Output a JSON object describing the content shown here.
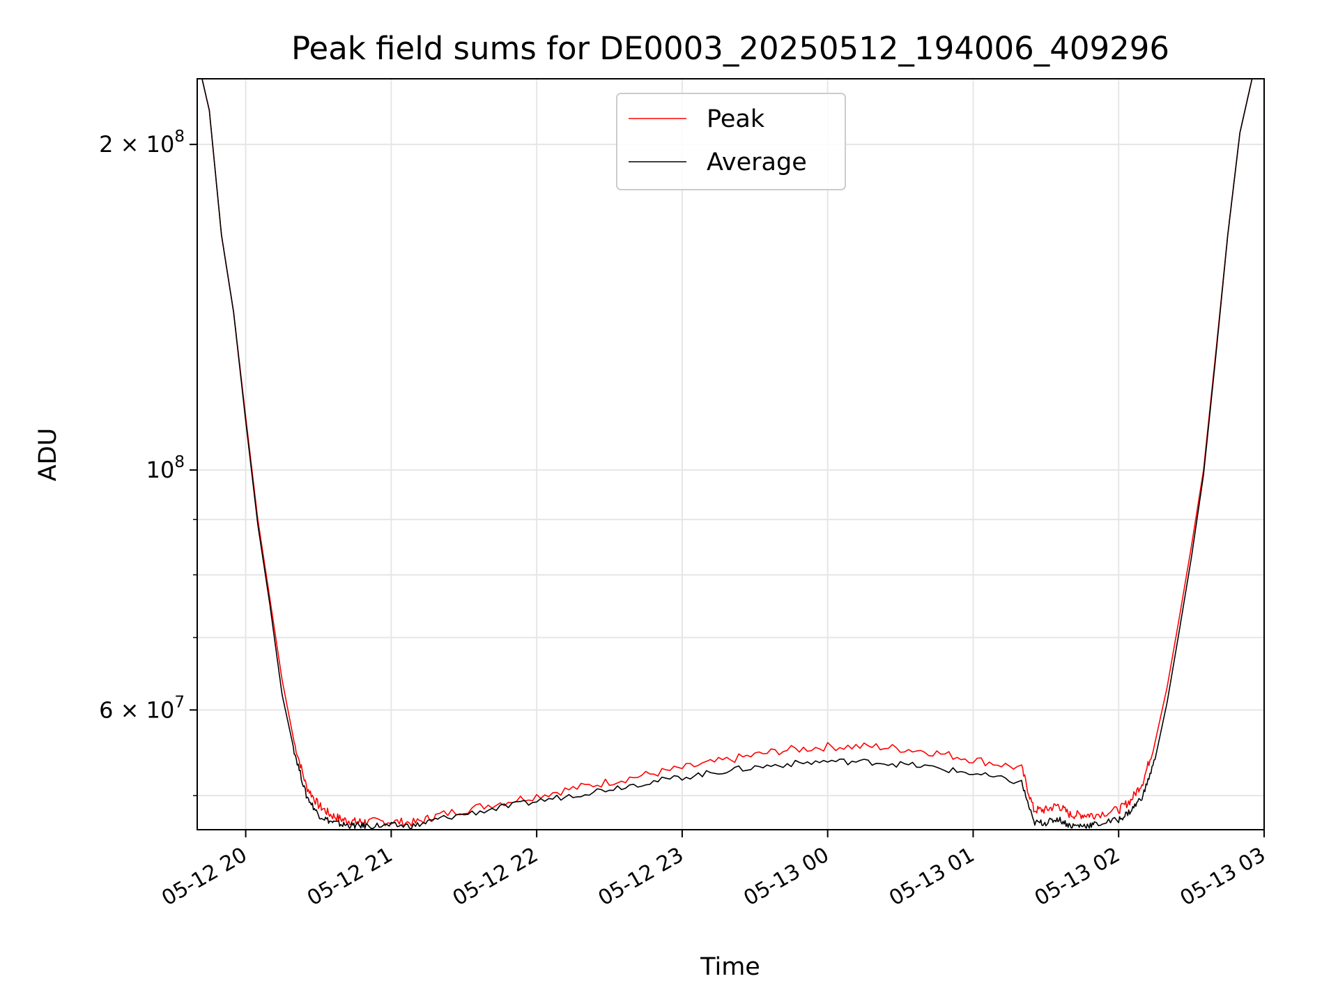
{
  "chart_data": {
    "type": "line",
    "title": "Peak field sums for DE0003_20250512_194006_409296",
    "xlabel": "Time",
    "ylabel": "ADU",
    "yscale": "log",
    "xlim": [
      "2025-05-12 19:40",
      "2025-05-13 03:00"
    ],
    "ylim": [
      46500000,
      230000000
    ],
    "grid": true,
    "legend_position": "upper center",
    "x_ticks": [
      "05-12 20",
      "05-12 21",
      "05-12 22",
      "05-12 23",
      "05-13 00",
      "05-13 01",
      "05-13 02",
      "05-13 03"
    ],
    "y_ticks": [
      {
        "label_base": "2 × 10",
        "label_exp": "8",
        "value": 200000000
      },
      {
        "label_base": "10",
        "label_exp": "8",
        "value": 100000000
      },
      {
        "label_base": "6 × 10",
        "label_exp": "7",
        "value": 60000000
      }
    ],
    "y_minor_ticks": [
      50000000,
      70000000,
      80000000,
      90000000
    ],
    "series": [
      {
        "name": "Peak",
        "color": "#ff0000",
        "x": [
          "2025-05-12 19:40",
          "2025-05-12 19:42",
          "2025-05-12 19:45",
          "2025-05-12 19:50",
          "2025-05-12 19:55",
          "2025-05-12 20:00",
          "2025-05-12 20:05",
          "2025-05-12 20:10",
          "2025-05-12 20:15",
          "2025-05-12 20:20",
          "2025-05-12 20:25",
          "2025-05-12 20:30",
          "2025-05-12 20:35",
          "2025-05-12 20:40",
          "2025-05-12 20:45",
          "2025-05-12 20:50",
          "2025-05-12 21:00",
          "2025-05-12 21:10",
          "2025-05-12 21:20",
          "2025-05-12 21:40",
          "2025-05-12 22:00",
          "2025-05-12 22:20",
          "2025-05-12 22:40",
          "2025-05-12 23:00",
          "2025-05-12 23:20",
          "2025-05-12 23:40",
          "2025-05-13 00:00",
          "2025-05-13 00:20",
          "2025-05-13 00:40",
          "2025-05-13 01:00",
          "2025-05-13 01:20",
          "2025-05-13 01:25",
          "2025-05-13 01:30",
          "2025-05-13 01:35",
          "2025-05-13 01:40",
          "2025-05-13 01:45",
          "2025-05-13 01:50",
          "2025-05-13 02:00",
          "2025-05-13 02:05",
          "2025-05-13 02:10",
          "2025-05-13 02:15",
          "2025-05-13 02:20",
          "2025-05-13 02:25",
          "2025-05-13 02:30",
          "2025-05-13 02:35",
          "2025-05-13 02:40",
          "2025-05-13 02:45",
          "2025-05-13 02:50",
          "2025-05-13 02:55",
          "2025-05-13 02:58"
        ],
        "y": [
          230000000,
          230000000,
          215000000,
          165000000,
          140000000,
          112000000,
          90000000,
          76000000,
          64000000,
          56000000,
          51000000,
          49000000,
          48000000,
          47500000,
          47300000,
          47300000,
          47300000,
          47200000,
          48000000,
          49000000,
          50000000,
          51000000,
          52000000,
          53000000,
          54000000,
          55000000,
          55500000,
          55500000,
          55000000,
          54000000,
          53000000,
          48500000,
          48500000,
          49000000,
          48000000,
          48000000,
          48000000,
          48500000,
          49500000,
          51500000,
          56000000,
          63000000,
          73000000,
          85000000,
          100000000,
          128000000,
          165000000,
          205000000,
          230000000,
          230000000
        ]
      },
      {
        "name": "Average",
        "color": "#000000",
        "x": [
          "2025-05-12 19:40",
          "2025-05-12 19:42",
          "2025-05-12 19:45",
          "2025-05-12 19:50",
          "2025-05-12 19:55",
          "2025-05-12 20:00",
          "2025-05-12 20:05",
          "2025-05-12 20:10",
          "2025-05-12 20:15",
          "2025-05-12 20:20",
          "2025-05-12 20:25",
          "2025-05-12 20:30",
          "2025-05-12 20:35",
          "2025-05-12 20:40",
          "2025-05-12 20:45",
          "2025-05-12 20:50",
          "2025-05-12 21:00",
          "2025-05-12 21:10",
          "2025-05-12 21:20",
          "2025-05-12 21:40",
          "2025-05-12 22:00",
          "2025-05-12 22:20",
          "2025-05-12 22:40",
          "2025-05-12 23:00",
          "2025-05-12 23:20",
          "2025-05-12 23:40",
          "2025-05-13 00:00",
          "2025-05-13 00:20",
          "2025-05-13 00:40",
          "2025-05-13 01:00",
          "2025-05-13 01:20",
          "2025-05-13 01:25",
          "2025-05-13 01:30",
          "2025-05-13 01:35",
          "2025-05-13 01:40",
          "2025-05-13 01:45",
          "2025-05-13 01:50",
          "2025-05-13 02:00",
          "2025-05-13 02:05",
          "2025-05-13 02:10",
          "2025-05-13 02:15",
          "2025-05-13 02:20",
          "2025-05-13 02:25",
          "2025-05-13 02:30",
          "2025-05-13 02:35",
          "2025-05-13 02:40",
          "2025-05-13 02:45",
          "2025-05-13 02:50",
          "2025-05-13 02:55",
          "2025-05-13 02:58"
        ],
        "y": [
          230000000,
          230000000,
          215000000,
          165000000,
          140000000,
          111000000,
          89000000,
          75000000,
          62000000,
          55000000,
          50000000,
          48000000,
          47300000,
          47000000,
          46900000,
          46900000,
          46900000,
          46900000,
          47600000,
          48500000,
          49400000,
          50300000,
          51200000,
          52000000,
          52800000,
          53400000,
          53800000,
          53700000,
          53200000,
          52400000,
          51400000,
          47200000,
          47200000,
          47600000,
          46900000,
          46900000,
          47000000,
          47500000,
          48400000,
          50000000,
          54000000,
          61000000,
          71000000,
          83000000,
          99000000,
          127000000,
          165000000,
          205000000,
          230000000,
          230000000
        ]
      }
    ]
  }
}
